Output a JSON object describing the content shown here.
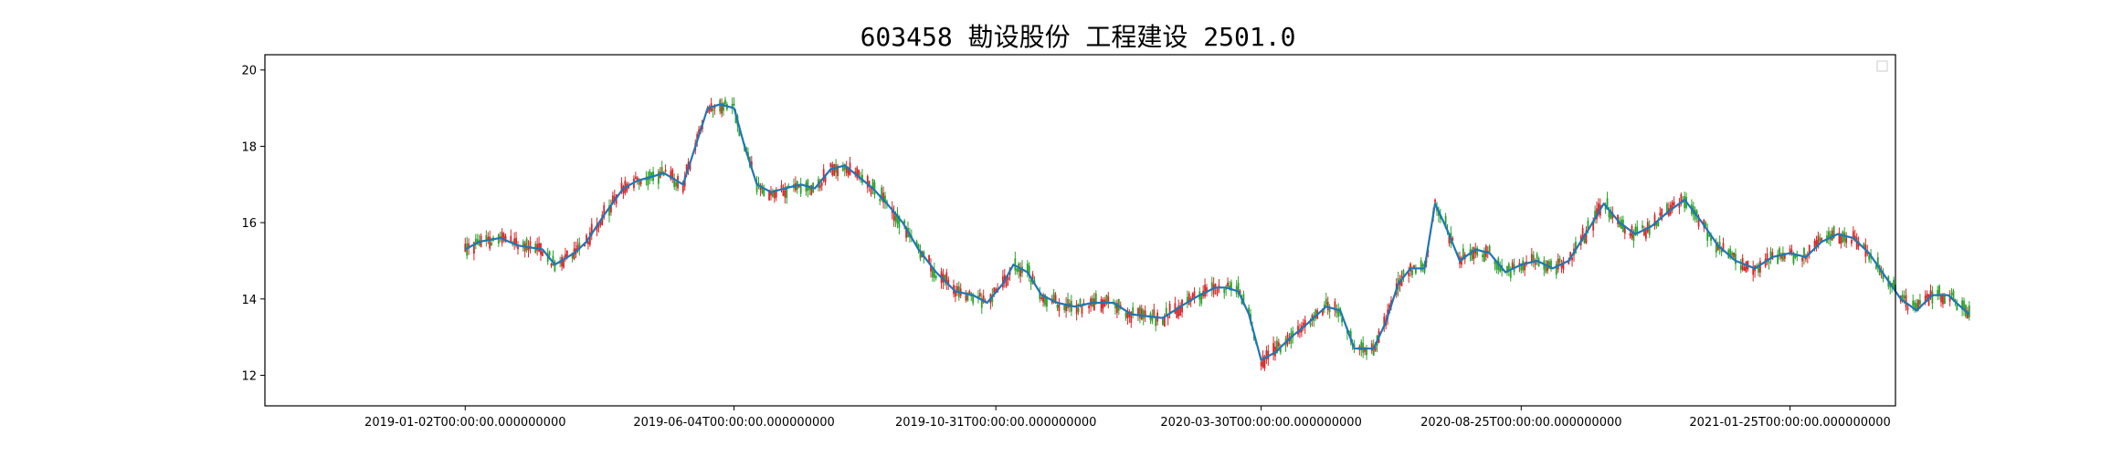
{
  "chart_data": {
    "type": "candlestick",
    "title": "603458 勘设股份 工程建设 2501.0",
    "xlabel": "",
    "ylabel": "",
    "ylim": [
      11.2,
      20.4
    ],
    "y_ticks": [
      12,
      14,
      16,
      18,
      20
    ],
    "x_tick_labels": [
      "2019-01-02T00:00:00.000000000",
      "2019-06-04T00:00:00.000000000",
      "2019-10-31T00:00:00.000000000",
      "2020-03-30T00:00:00.000000000",
      "2020-08-25T00:00:00.000000000",
      "2021-01-25T00:00:00.000000000"
    ],
    "x_tick_dates": [
      "2019-01-02",
      "2019-06-04",
      "2019-10-31",
      "2020-03-30",
      "2020-08-25",
      "2021-01-25"
    ],
    "x_range": [
      "2018-09-10",
      "2021-03-26"
    ],
    "colors": {
      "up": "#d62728",
      "down": "#2ca02c",
      "ma": "#1f77b4"
    },
    "legend": {
      "placement": "top-right",
      "entries": []
    },
    "grid": false,
    "series": [
      {
        "kind": "ma",
        "points": [
          [
            "2019-01-02",
            15.3
          ],
          [
            "2019-01-10",
            15.5
          ],
          [
            "2019-01-22",
            15.6
          ],
          [
            "2019-02-01",
            15.4
          ],
          [
            "2019-02-15",
            15.3
          ],
          [
            "2019-02-22",
            14.9
          ],
          [
            "2019-03-05",
            15.2
          ],
          [
            "2019-03-12",
            15.5
          ],
          [
            "2019-03-22",
            16.2
          ],
          [
            "2019-04-02",
            16.9
          ],
          [
            "2019-04-10",
            17.1
          ],
          [
            "2019-04-18",
            17.2
          ],
          [
            "2019-04-25",
            17.3
          ],
          [
            "2019-05-06",
            17.0
          ],
          [
            "2019-05-13",
            18.0
          ],
          [
            "2019-05-20",
            19.0
          ],
          [
            "2019-05-27",
            19.1
          ],
          [
            "2019-06-04",
            19.0
          ],
          [
            "2019-06-10",
            18.0
          ],
          [
            "2019-06-17",
            17.0
          ],
          [
            "2019-06-25",
            16.8
          ],
          [
            "2019-07-03",
            16.9
          ],
          [
            "2019-07-12",
            17.0
          ],
          [
            "2019-07-20",
            16.9
          ],
          [
            "2019-07-29",
            17.4
          ],
          [
            "2019-08-06",
            17.5
          ],
          [
            "2019-08-14",
            17.2
          ],
          [
            "2019-08-22",
            16.9
          ],
          [
            "2019-08-30",
            16.5
          ],
          [
            "2019-09-08",
            16.0
          ],
          [
            "2019-09-17",
            15.3
          ],
          [
            "2019-09-27",
            14.7
          ],
          [
            "2019-10-08",
            14.2
          ],
          [
            "2019-10-18",
            14.1
          ],
          [
            "2019-10-26",
            13.9
          ],
          [
            "2019-11-04",
            14.4
          ],
          [
            "2019-11-10",
            14.9
          ],
          [
            "2019-11-18",
            14.7
          ],
          [
            "2019-11-26",
            14.1
          ],
          [
            "2019-12-05",
            13.9
          ],
          [
            "2019-12-15",
            13.8
          ],
          [
            "2019-12-25",
            13.9
          ],
          [
            "2020-01-06",
            13.9
          ],
          [
            "2020-01-16",
            13.6
          ],
          [
            "2020-02-03",
            13.5
          ],
          [
            "2020-02-13",
            13.8
          ],
          [
            "2020-02-24",
            14.1
          ],
          [
            "2020-03-04",
            14.3
          ],
          [
            "2020-03-10",
            14.3
          ],
          [
            "2020-03-17",
            14.2
          ],
          [
            "2020-03-23",
            13.6
          ],
          [
            "2020-03-30",
            12.4
          ],
          [
            "2020-04-07",
            12.6
          ],
          [
            "2020-04-16",
            13.0
          ],
          [
            "2020-04-24",
            13.3
          ],
          [
            "2020-05-06",
            13.8
          ],
          [
            "2020-05-14",
            13.7
          ],
          [
            "2020-05-22",
            12.7
          ],
          [
            "2020-06-02",
            12.7
          ],
          [
            "2020-06-09",
            13.4
          ],
          [
            "2020-06-16",
            14.4
          ],
          [
            "2020-06-23",
            14.8
          ],
          [
            "2020-07-01",
            14.8
          ],
          [
            "2020-07-07",
            16.5
          ],
          [
            "2020-07-14",
            15.8
          ],
          [
            "2020-07-21",
            15.0
          ],
          [
            "2020-07-30",
            15.3
          ],
          [
            "2020-08-07",
            15.2
          ],
          [
            "2020-08-16",
            14.7
          ],
          [
            "2020-08-25",
            14.9
          ],
          [
            "2020-09-03",
            15.0
          ],
          [
            "2020-09-12",
            14.8
          ],
          [
            "2020-09-21",
            15.0
          ],
          [
            "2020-10-02",
            15.8
          ],
          [
            "2020-10-11",
            16.5
          ],
          [
            "2020-10-20",
            16.0
          ],
          [
            "2020-10-29",
            15.7
          ],
          [
            "2020-11-07",
            15.9
          ],
          [
            "2020-11-17",
            16.3
          ],
          [
            "2020-11-26",
            16.6
          ],
          [
            "2020-12-06",
            16.0
          ],
          [
            "2020-12-15",
            15.4
          ],
          [
            "2020-12-25",
            15.0
          ],
          [
            "2021-01-05",
            14.8
          ],
          [
            "2021-01-15",
            15.1
          ],
          [
            "2021-01-25",
            15.2
          ],
          [
            "2021-02-03",
            15.1
          ],
          [
            "2021-02-12",
            15.5
          ],
          [
            "2021-02-21",
            15.7
          ],
          [
            "2021-03-02",
            15.6
          ],
          [
            "2021-03-11",
            15.2
          ],
          [
            "2021-03-20",
            14.6
          ],
          [
            "2021-03-29",
            14.0
          ],
          [
            "2021-04-07",
            13.7
          ],
          [
            "2021-04-16",
            14.1
          ],
          [
            "2021-04-25",
            14.1
          ],
          [
            "2021-05-02",
            13.8
          ],
          [
            "2021-05-07",
            13.6
          ]
        ]
      }
    ]
  }
}
